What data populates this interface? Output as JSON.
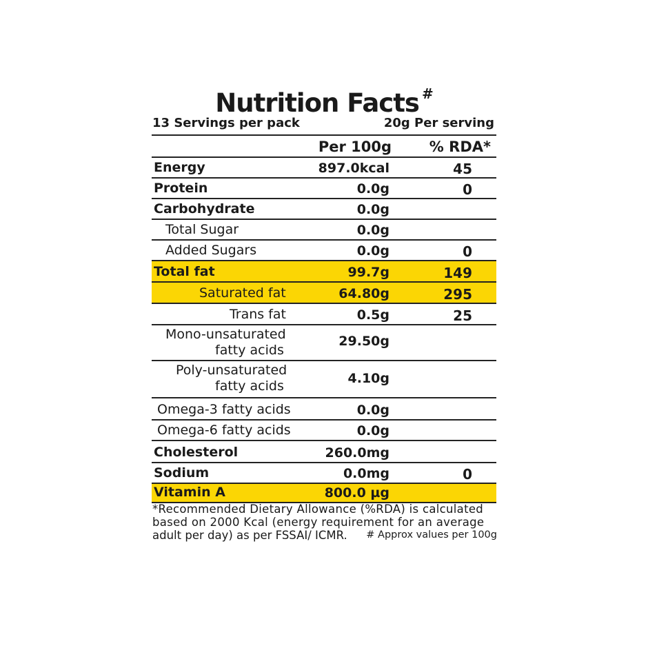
{
  "title": "Nutrition Facts",
  "title_mark": "#",
  "servings_per_pack": "13 Servings per pack",
  "serving_size": "20g Per serving",
  "columns": {
    "per100": "Per 100g",
    "rda": "% RDA*"
  },
  "highlight_color": "#fbd604",
  "rows": [
    {
      "label": "Energy",
      "per100": "897.0kcal",
      "rda": "45"
    },
    {
      "label": "Protein",
      "per100": "0.0g",
      "rda": "0"
    },
    {
      "label": "Carbohydrate",
      "per100": "0.0g",
      "rda": ""
    },
    {
      "label": "Total Sugar",
      "per100": "0.0g",
      "rda": ""
    },
    {
      "label": "Added Sugars",
      "per100": "0.0g",
      "rda": "0"
    },
    {
      "label": "Total fat",
      "per100": "99.7g",
      "rda": "149"
    },
    {
      "label": "Saturated fat",
      "per100": "64.80g",
      "rda": "295"
    },
    {
      "label": "Trans fat",
      "per100": "0.5g",
      "rda": "25"
    },
    {
      "label": "Mono-unsaturated",
      "label2": "fatty acids",
      "per100": "29.50g",
      "rda": ""
    },
    {
      "label": "Poly-unsaturated",
      "label2": "fatty acids",
      "per100": "4.10g",
      "rda": ""
    },
    {
      "label": "Omega-3 fatty acids",
      "per100": "0.0g",
      "rda": ""
    },
    {
      "label": "Omega-6 fatty acids",
      "per100": "0.0g",
      "rda": ""
    },
    {
      "label": "Cholesterol",
      "per100": "260.0mg",
      "rda": ""
    },
    {
      "label": "Sodium",
      "per100": "0.0mg",
      "rda": "0"
    },
    {
      "label": "Vitamin A",
      "per100": "800.0 µg",
      "rda": ""
    }
  ],
  "footnote": {
    "line1": "*Recommended Dietary Allowance (%RDA) is calculated",
    "line2": "based on 2000 Kcal (energy requirement for an average",
    "line3": "adult per day) as per FSSAI/ ICMR.",
    "approx": "# Approx values per 100g"
  }
}
